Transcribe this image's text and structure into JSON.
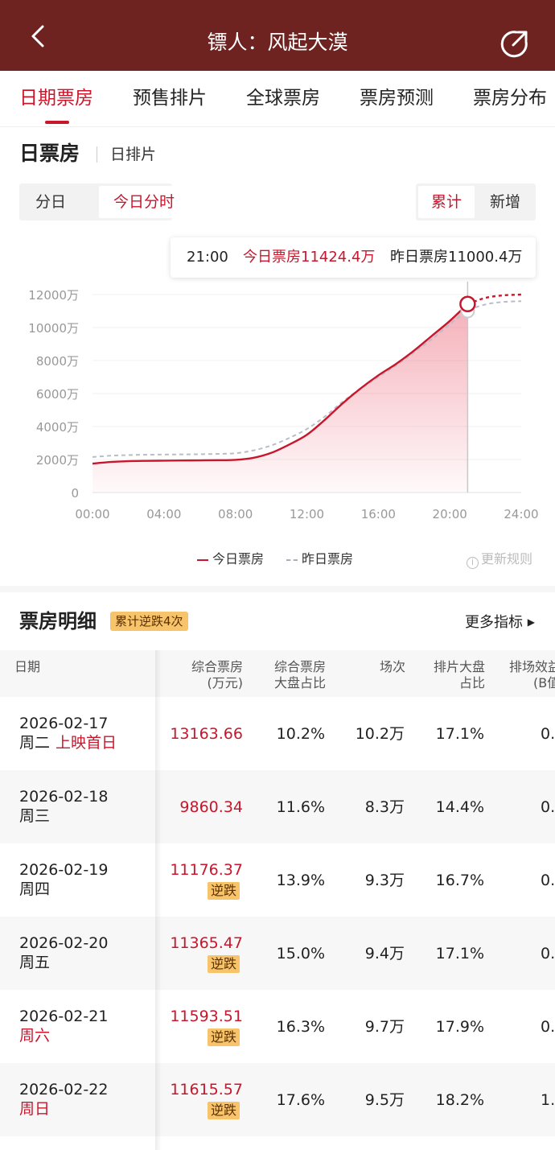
{
  "header": {
    "title": "镖人：风起大漠",
    "back_icon": "chevron-left-icon",
    "share_icon": "share-icon"
  },
  "tabs": [
    {
      "label": "日期票房",
      "active": true
    },
    {
      "label": "预售排片"
    },
    {
      "label": "全球票房"
    },
    {
      "label": "票房预测"
    },
    {
      "label": "票房分布"
    }
  ],
  "section": {
    "title": "日票房",
    "subtitle": "日排片"
  },
  "segment_left": {
    "options": [
      "分日",
      "今日分时"
    ],
    "selected": "今日分时"
  },
  "segment_right": {
    "options": [
      "累计",
      "新增"
    ],
    "selected": "累计"
  },
  "tooltip": {
    "time": "21:00",
    "today": "今日票房11424.4万",
    "yesterday": "昨日票房11000.4万"
  },
  "legend": {
    "today": "今日票房",
    "yesterday": "昨日票房",
    "rule": "更新规则"
  },
  "colors": {
    "header_bg": "#6e2320",
    "accent": "#c8162c",
    "badge_bg": "#f7c36b",
    "yesterday_line": "#aab0b8"
  },
  "chart_data": {
    "type": "area",
    "x_ticks": [
      "00:00",
      "04:00",
      "08:00",
      "12:00",
      "16:00",
      "20:00",
      "24:00"
    ],
    "y_ticks": [
      "12000万",
      "10000万",
      "8000万",
      "6000万",
      "4000万",
      "2000万",
      "0"
    ],
    "ylim": [
      0,
      12000
    ],
    "xlim": [
      0,
      24
    ],
    "grid": true,
    "cursor_x": 21,
    "series": [
      {
        "name": "今日票房",
        "x": [
          0,
          1,
          2,
          3,
          4,
          5,
          6,
          7,
          8,
          9,
          10,
          11,
          12,
          13,
          14,
          15,
          16,
          17,
          18,
          19,
          20,
          21
        ],
        "values": [
          1750,
          1850,
          1900,
          1920,
          1930,
          1940,
          1950,
          1960,
          1980,
          2100,
          2400,
          2900,
          3500,
          4400,
          5400,
          6300,
          7100,
          7800,
          8600,
          9500,
          10400,
          11424.4
        ],
        "projection_x": [
          21,
          22,
          23,
          24
        ],
        "projection_values": [
          11424.4,
          11800,
          11950,
          12000
        ]
      },
      {
        "name": "昨日票房",
        "x": [
          0,
          1,
          2,
          3,
          4,
          5,
          6,
          7,
          8,
          9,
          10,
          11,
          12,
          13,
          14,
          15,
          16,
          17,
          18,
          19,
          20,
          21,
          22,
          23,
          24
        ],
        "values": [
          2150,
          2230,
          2270,
          2290,
          2300,
          2310,
          2320,
          2340,
          2380,
          2550,
          2850,
          3300,
          3850,
          4600,
          5500,
          6300,
          7000,
          7700,
          8500,
          9300,
          10200,
          11000.4,
          11400,
          11550,
          11600
        ]
      }
    ]
  },
  "detail": {
    "title": "票房明细",
    "badge": "累计逆跌4次",
    "more": "更多指标",
    "columns": [
      [
        "日期"
      ],
      [
        "综合票房",
        "(万元)"
      ],
      [
        "综合票房",
        "大盘占比"
      ],
      [
        "场次"
      ],
      [
        "排片大盘",
        "占比"
      ],
      [
        "排场效益",
        "(B值"
      ]
    ],
    "rows": [
      {
        "date": "2026-02-17",
        "weekday": "周二",
        "tag": "上映首日",
        "weekend": false,
        "box": "13163.66",
        "reverse": "",
        "share": "10.2%",
        "shows": "10.2万",
        "sched": "17.1%",
        "eff": "0."
      },
      {
        "date": "2026-02-18",
        "weekday": "周三",
        "tag": "",
        "weekend": false,
        "box": "9860.34",
        "reverse": "",
        "share": "11.6%",
        "shows": "8.3万",
        "sched": "14.4%",
        "eff": "0."
      },
      {
        "date": "2026-02-19",
        "weekday": "周四",
        "tag": "",
        "weekend": false,
        "box": "11176.37",
        "reverse": "逆跌",
        "share": "13.9%",
        "shows": "9.3万",
        "sched": "16.7%",
        "eff": "0."
      },
      {
        "date": "2026-02-20",
        "weekday": "周五",
        "tag": "",
        "weekend": false,
        "box": "11365.47",
        "reverse": "逆跌",
        "share": "15.0%",
        "shows": "9.4万",
        "sched": "17.1%",
        "eff": "0."
      },
      {
        "date": "2026-02-21",
        "weekday": "周六",
        "tag": "",
        "weekend": true,
        "box": "11593.51",
        "reverse": "逆跌",
        "share": "16.3%",
        "shows": "9.7万",
        "sched": "17.9%",
        "eff": "0."
      },
      {
        "date": "2026-02-22",
        "weekday": "周日",
        "tag": "",
        "weekend": true,
        "box": "11615.57",
        "reverse": "逆跌",
        "share": "17.6%",
        "shows": "9.5万",
        "sched": "18.2%",
        "eff": "1."
      }
    ]
  }
}
